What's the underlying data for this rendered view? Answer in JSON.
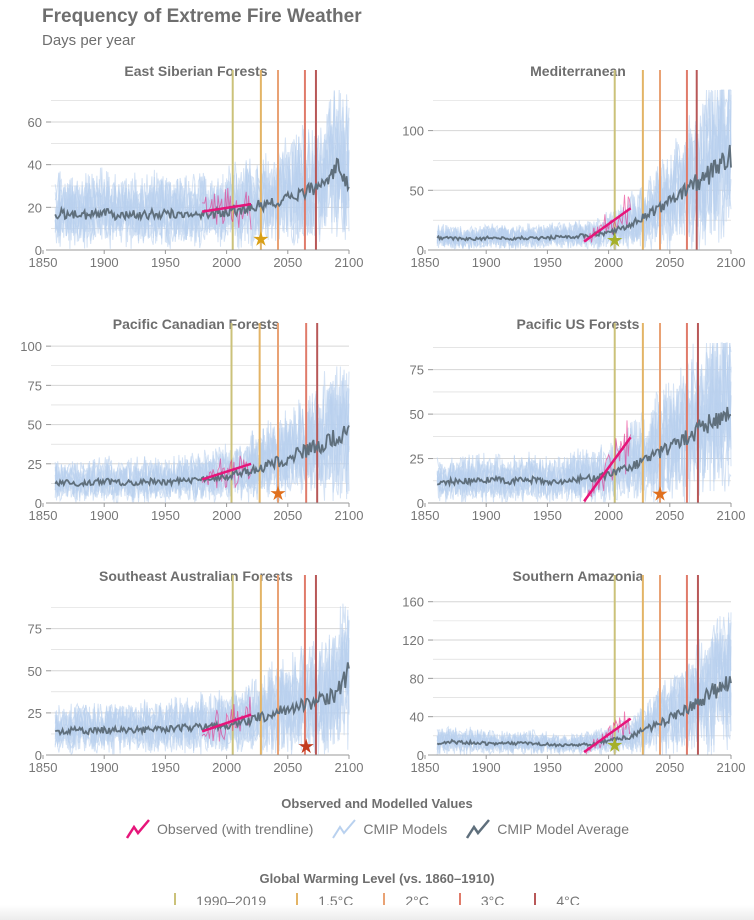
{
  "header": {
    "title": "Frequency of Extreme Fire Weather",
    "subtitle": "Days per year"
  },
  "colors": {
    "observed": "#e6157a",
    "models": "#b9d1ef",
    "average": "#5f6f7c",
    "wl_1990_2019": "#cbc27a",
    "wl_1_5": "#e3b466",
    "wl_2": "#e9a274",
    "wl_3": "#e07b6a",
    "wl_4": "#b85858",
    "grid": "#d6d6d6"
  },
  "legend": {
    "values_title": "Observed and Modelled Values",
    "values": [
      {
        "label": "Observed (with trendline)",
        "icon": "observed-line-icon"
      },
      {
        "label": "CMIP Models",
        "icon": "models-line-icon"
      },
      {
        "label": "CMIP Model Average",
        "icon": "average-line-icon"
      }
    ],
    "warming_title": "Global Warming Level (vs. 1860–1910)",
    "warming": [
      {
        "label": "1990–2019",
        "color": "#cbc27a"
      },
      {
        "label": "1.5°C",
        "color": "#e3b466"
      },
      {
        "label": "2°C",
        "color": "#e9a274"
      },
      {
        "label": "3°C",
        "color": "#e07b6a"
      },
      {
        "label": "4°C",
        "color": "#b85858"
      }
    ]
  },
  "chart_data": [
    {
      "type": "line",
      "title": "East Siberian Forests",
      "xlim": [
        1850,
        2100
      ],
      "xticks": [
        1850,
        1900,
        1950,
        2000,
        2050,
        2100
      ],
      "ylim": [
        0,
        75
      ],
      "yticks": [
        0,
        20,
        40,
        60
      ],
      "grid": true,
      "warming_years": [
        2005,
        2028,
        2042,
        2064,
        2073
      ],
      "star": {
        "year": 2028,
        "value": 5,
        "color": "#d9a017"
      },
      "observed_trend": {
        "x": [
          1980,
          2020
        ],
        "y": [
          18,
          21.5
        ]
      },
      "average": {
        "x": [
          1860,
          1870,
          1880,
          1890,
          1900,
          1910,
          1920,
          1930,
          1940,
          1950,
          1960,
          1970,
          1980,
          1990,
          2000,
          2010,
          2020,
          2030,
          2040,
          2050,
          2060,
          2070,
          2080,
          2090,
          2100
        ],
        "y": [
          17,
          17,
          16,
          17,
          18,
          16,
          17,
          16,
          17,
          17,
          17,
          16,
          17,
          17,
          18,
          19,
          20,
          21,
          22,
          24,
          27,
          28,
          30,
          38,
          32
        ]
      }
    },
    {
      "type": "line",
      "title": "Mediterranean",
      "xlim": [
        1850,
        2100
      ],
      "xticks": [
        1850,
        1900,
        1950,
        2000,
        2050,
        2100
      ],
      "ylim": [
        0,
        134
      ],
      "yticks": [
        0,
        50,
        100
      ],
      "grid": true,
      "warming_years": [
        2005,
        2028,
        2042,
        2064,
        2072
      ],
      "star": {
        "year": 2005,
        "value": 8,
        "color": "#a5b02a"
      },
      "observed_trend": {
        "x": [
          1980,
          2018
        ],
        "y": [
          7,
          35
        ]
      },
      "average": {
        "x": [
          1860,
          1870,
          1880,
          1890,
          1900,
          1910,
          1920,
          1930,
          1940,
          1950,
          1960,
          1970,
          1980,
          1990,
          2000,
          2010,
          2020,
          2030,
          2040,
          2050,
          2060,
          2070,
          2080,
          2090,
          2100
        ],
        "y": [
          10,
          10,
          9,
          9,
          10,
          10,
          9,
          10,
          10,
          10,
          11,
          11,
          12,
          13,
          15,
          18,
          22,
          28,
          34,
          40,
          47,
          55,
          62,
          70,
          80
        ]
      }
    },
    {
      "type": "line",
      "title": "Pacific Canadian Forests",
      "xlim": [
        1850,
        2100
      ],
      "xticks": [
        1850,
        1900,
        1950,
        2000,
        2050,
        2100
      ],
      "ylim": [
        0,
        102
      ],
      "yticks": [
        0,
        25,
        50,
        75,
        100
      ],
      "grid": true,
      "warming_years": [
        2004,
        2027,
        2042,
        2065,
        2074
      ],
      "star": {
        "year": 2042,
        "value": 6,
        "color": "#e0701e"
      },
      "observed_trend": {
        "x": [
          1980,
          2020
        ],
        "y": [
          15,
          25
        ]
      },
      "average": {
        "x": [
          1860,
          1870,
          1880,
          1890,
          1900,
          1910,
          1920,
          1930,
          1940,
          1950,
          1960,
          1970,
          1980,
          1990,
          2000,
          2010,
          2020,
          2030,
          2040,
          2050,
          2060,
          2070,
          2080,
          2090,
          2100
        ],
        "y": [
          13,
          13,
          12,
          13,
          14,
          13,
          13,
          13,
          14,
          13,
          14,
          14,
          15,
          16,
          17,
          19,
          21,
          23,
          26,
          28,
          32,
          35,
          38,
          42,
          45
        ]
      }
    },
    {
      "type": "line",
      "title": "Pacific US Forests",
      "xlim": [
        1850,
        2100
      ],
      "xticks": [
        1850,
        1900,
        1950,
        2000,
        2050,
        2100
      ],
      "ylim": [
        0,
        90
      ],
      "yticks": [
        0,
        25,
        50,
        75
      ],
      "grid": true,
      "warming_years": [
        2005,
        2028,
        2042,
        2064,
        2073
      ],
      "star": {
        "year": 2042,
        "value": 5,
        "color": "#e0701e"
      },
      "observed_trend": {
        "x": [
          1980,
          2018
        ],
        "y": [
          1,
          37
        ]
      },
      "average": {
        "x": [
          1860,
          1870,
          1880,
          1890,
          1900,
          1910,
          1920,
          1930,
          1940,
          1950,
          1960,
          1970,
          1980,
          1990,
          2000,
          2010,
          2020,
          2030,
          2040,
          2050,
          2060,
          2070,
          2080,
          2090,
          2100
        ],
        "y": [
          12,
          12,
          12,
          13,
          13,
          13,
          12,
          13,
          13,
          12,
          12,
          13,
          14,
          14,
          16,
          18,
          21,
          24,
          28,
          32,
          36,
          40,
          44,
          48,
          52
        ]
      }
    },
    {
      "type": "line",
      "title": "Southeast Australian Forests",
      "xlim": [
        1850,
        2100
      ],
      "xticks": [
        1850,
        1900,
        1950,
        2000,
        2050,
        2100
      ],
      "ylim": [
        0,
        95
      ],
      "yticks": [
        0,
        25,
        50,
        75
      ],
      "grid": true,
      "warming_years": [
        2005,
        2028,
        2042,
        2064,
        2073
      ],
      "star": {
        "year": 2065,
        "value": 5,
        "color": "#c23a1e"
      },
      "observed_trend": {
        "x": [
          1980,
          2020
        ],
        "y": [
          14,
          24
        ]
      },
      "average": {
        "x": [
          1860,
          1870,
          1880,
          1890,
          1900,
          1910,
          1920,
          1930,
          1940,
          1950,
          1960,
          1970,
          1980,
          1990,
          2000,
          2010,
          2020,
          2030,
          2040,
          2050,
          2060,
          2070,
          2080,
          2090,
          2100
        ],
        "y": [
          14,
          14,
          15,
          14,
          15,
          15,
          14,
          15,
          15,
          15,
          16,
          16,
          17,
          17,
          18,
          19,
          21,
          23,
          25,
          27,
          29,
          31,
          33,
          36,
          50
        ]
      }
    },
    {
      "type": "line",
      "title": "Southern Amazonia",
      "xlim": [
        1850,
        2100
      ],
      "xticks": [
        1850,
        1900,
        1950,
        2000,
        2050,
        2100
      ],
      "ylim": [
        0,
        167
      ],
      "yticks": [
        0,
        40,
        80,
        120,
        160
      ],
      "grid": true,
      "warming_years": [
        2005,
        2028,
        2042,
        2064,
        2073
      ],
      "star": {
        "year": 2005,
        "value": 10,
        "color": "#a5b02a"
      },
      "observed_trend": {
        "x": [
          1980,
          2018
        ],
        "y": [
          3,
          38
        ]
      },
      "average": {
        "x": [
          1860,
          1870,
          1880,
          1890,
          1900,
          1910,
          1920,
          1930,
          1940,
          1950,
          1960,
          1970,
          1980,
          1990,
          2000,
          2010,
          2020,
          2030,
          2040,
          2050,
          2060,
          2070,
          2080,
          2090,
          2100
        ],
        "y": [
          13,
          14,
          13,
          13,
          12,
          12,
          12,
          12,
          12,
          11,
          10,
          10,
          11,
          12,
          15,
          17,
          20,
          27,
          32,
          38,
          45,
          52,
          62,
          70,
          80
        ]
      }
    }
  ]
}
